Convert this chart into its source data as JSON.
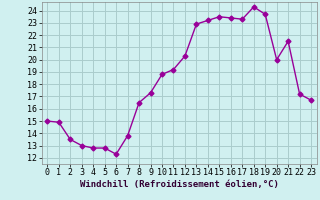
{
  "hours": [
    0,
    1,
    2,
    3,
    4,
    5,
    6,
    7,
    8,
    9,
    10,
    11,
    12,
    13,
    14,
    15,
    16,
    17,
    18,
    19,
    20,
    21,
    22,
    23
  ],
  "values": [
    15.0,
    14.9,
    13.5,
    13.0,
    12.8,
    12.8,
    12.3,
    13.8,
    16.5,
    17.3,
    18.8,
    19.2,
    20.3,
    22.9,
    23.2,
    23.5,
    23.4,
    23.3,
    24.3,
    23.7,
    20.0,
    21.5,
    17.2,
    16.7
  ],
  "line_color": "#990099",
  "marker": "D",
  "marker_size": 2.5,
  "bg_color": "#d0f0f0",
  "grid_color": "#aacccc",
  "xlabel": "Windchill (Refroidissement éolien,°C)",
  "ylim": [
    11.5,
    24.7
  ],
  "xlim": [
    -0.5,
    23.5
  ],
  "yticks": [
    12,
    13,
    14,
    15,
    16,
    17,
    18,
    19,
    20,
    21,
    22,
    23,
    24
  ],
  "xticks": [
    0,
    1,
    2,
    3,
    4,
    5,
    6,
    7,
    8,
    9,
    10,
    11,
    12,
    13,
    14,
    15,
    16,
    17,
    18,
    19,
    20,
    21,
    22,
    23
  ],
  "xlabel_fontsize": 6.5,
  "tick_fontsize": 6,
  "line_width": 1.0
}
